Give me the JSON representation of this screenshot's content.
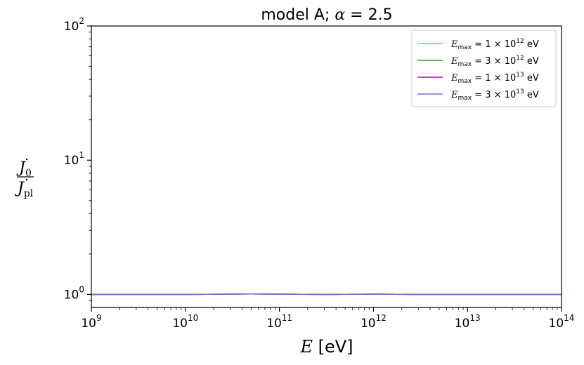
{
  "chart_data": {
    "type": "line",
    "title": {
      "prefix": "model A; ",
      "symbol": "α",
      "suffix": " = 2.5"
    },
    "xlabel": {
      "var": "E",
      "unit": " [eV]"
    },
    "ylabel": {
      "num": "J",
      "num_sub": "0",
      "den": "J",
      "den_sub": "pl"
    },
    "x_scale": "log",
    "y_scale": "log",
    "xlim": [
      1000000000.0,
      100000000000000.0
    ],
    "ylim": [
      0.8,
      100
    ],
    "x_ticks": [
      {
        "value": 1000000000.0,
        "base": "10",
        "exp": "9"
      },
      {
        "value": 10000000000.0,
        "base": "10",
        "exp": "10"
      },
      {
        "value": 100000000000.0,
        "base": "10",
        "exp": "11"
      },
      {
        "value": 1000000000000.0,
        "base": "10",
        "exp": "12"
      },
      {
        "value": 10000000000000.0,
        "base": "10",
        "exp": "13"
      },
      {
        "value": 100000000000000.0,
        "base": "10",
        "exp": "14"
      }
    ],
    "y_ticks": [
      {
        "value": 1,
        "base": "10",
        "exp": "0"
      },
      {
        "value": 10,
        "base": "10",
        "exp": "1"
      },
      {
        "value": 100,
        "base": "10",
        "exp": "2"
      }
    ],
    "grid": false,
    "legend_position": "top-right",
    "series": [
      {
        "name": "E_max = 1 × 10^12 eV",
        "label": {
          "var": "E",
          "sub": "max",
          "mid": " = 1 × 10",
          "exp": "12",
          "unit": " eV"
        },
        "color": "#ff9900",
        "x": [
          1000000000.0,
          3000000000.0,
          10000000000.0,
          30000000000.0,
          50000000000.0,
          100000000000.0,
          300000000000.0,
          1000000000000.0,
          3000000000000.0,
          10000000000000.0,
          30000000000000.0,
          100000000000000.0
        ],
        "y": [
          1.0,
          1.0,
          1.0,
          1.005,
          1.008,
          1.005,
          1.0,
          1.005,
          1.0,
          1.0,
          1.0,
          1.0
        ]
      },
      {
        "name": "E_max = 3 × 10^12 eV",
        "label": {
          "var": "E",
          "sub": "max",
          "mid": " = 3 × 10",
          "exp": "12",
          "unit": " eV"
        },
        "color": "#2ca02c",
        "x": [
          1000000000.0,
          3000000000.0,
          10000000000.0,
          30000000000.0,
          50000000000.0,
          100000000000.0,
          300000000000.0,
          1000000000000.0,
          3000000000000.0,
          10000000000000.0,
          30000000000000.0,
          100000000000000.0
        ],
        "y": [
          1.0,
          1.0,
          1.0,
          1.005,
          1.008,
          1.005,
          1.0,
          1.005,
          1.0,
          1.0,
          1.0,
          1.0
        ]
      },
      {
        "name": "E_max = 1 × 10^13 eV",
        "label": {
          "var": "E",
          "sub": "max",
          "mid": " = 1 × 10",
          "exp": "13",
          "unit": " eV"
        },
        "color": "#b000c8",
        "x": [
          1000000000.0,
          3000000000.0,
          10000000000.0,
          30000000000.0,
          50000000000.0,
          100000000000.0,
          300000000000.0,
          1000000000000.0,
          3000000000000.0,
          10000000000000.0,
          30000000000000.0,
          100000000000000.0
        ],
        "y": [
          1.0,
          1.0,
          1.0,
          1.005,
          1.008,
          1.005,
          1.0,
          1.005,
          1.0,
          1.0,
          1.0,
          1.0
        ]
      },
      {
        "name": "E_max = 3 × 10^13 eV",
        "label": {
          "var": "E",
          "sub": "max",
          "mid": " = 3 × 10",
          "exp": "13",
          "unit": " eV"
        },
        "color": "#6f6fd0",
        "x": [
          1000000000.0,
          3000000000.0,
          10000000000.0,
          30000000000.0,
          50000000000.0,
          100000000000.0,
          300000000000.0,
          1000000000000.0,
          3000000000000.0,
          10000000000000.0,
          30000000000000.0,
          100000000000000.0
        ],
        "y": [
          1.0,
          1.0,
          1.0,
          1.005,
          1.008,
          1.005,
          1.0,
          1.005,
          1.0,
          1.0,
          1.0,
          1.0
        ]
      }
    ]
  }
}
